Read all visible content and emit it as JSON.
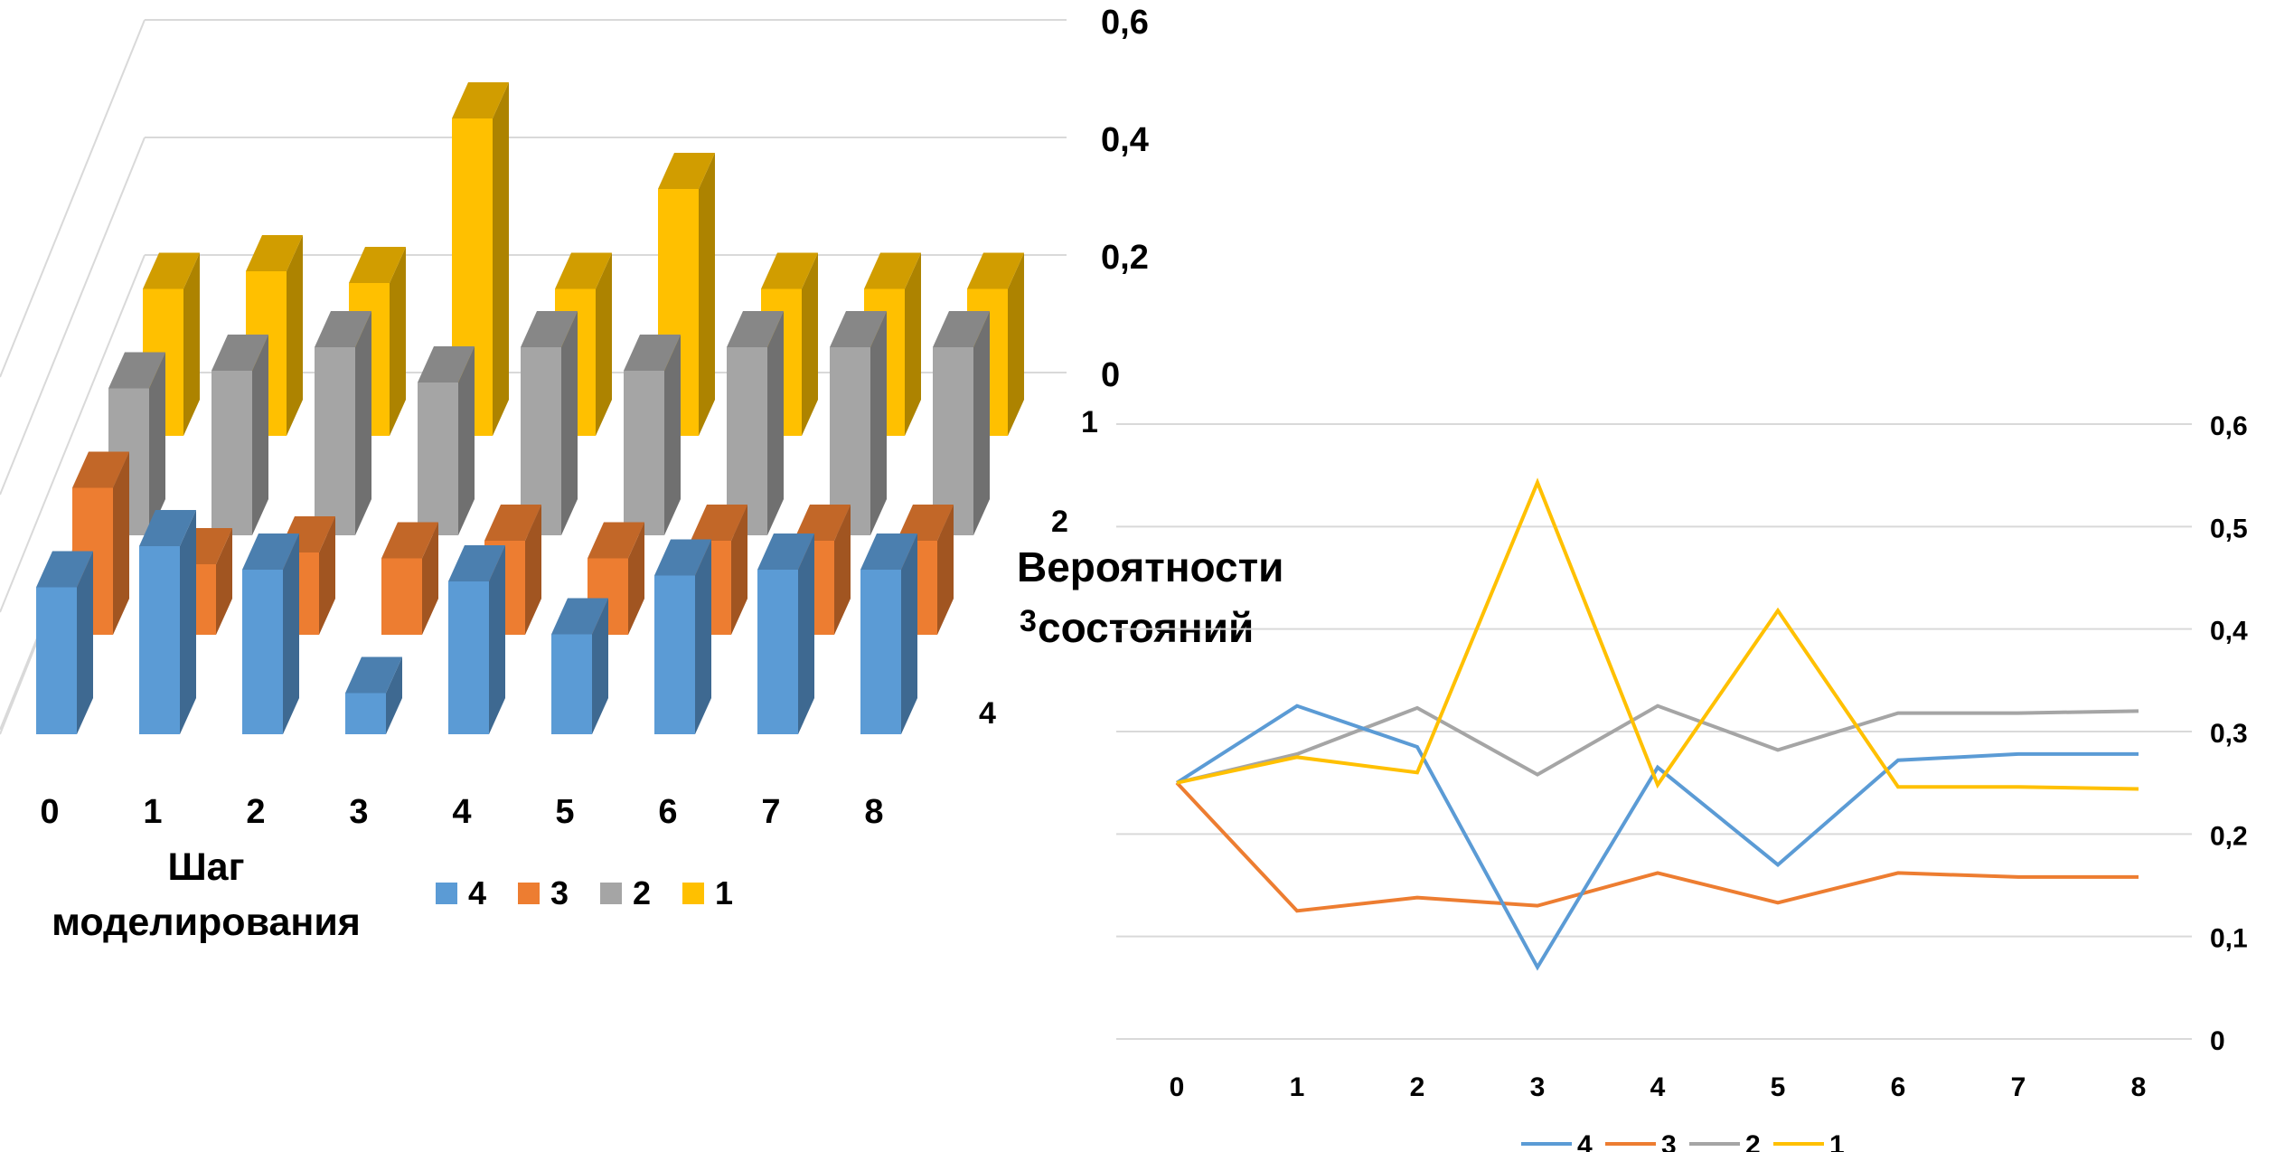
{
  "chart_data": [
    {
      "type": "bar",
      "subtype": "3d-column",
      "categories": [
        "0",
        "1",
        "2",
        "3",
        "4",
        "5",
        "6",
        "7",
        "8"
      ],
      "series": [
        {
          "name": "4",
          "color": "#5B9BD5",
          "values": [
            0.25,
            0.32,
            0.28,
            0.07,
            0.26,
            0.17,
            0.27,
            0.28,
            0.28
          ]
        },
        {
          "name": "3",
          "color": "#ED7D31",
          "values": [
            0.25,
            0.12,
            0.14,
            0.13,
            0.16,
            0.13,
            0.16,
            0.16,
            0.16
          ]
        },
        {
          "name": "2",
          "color": "#A5A5A5",
          "values": [
            0.25,
            0.28,
            0.32,
            0.26,
            0.32,
            0.28,
            0.32,
            0.32,
            0.32
          ]
        },
        {
          "name": "1",
          "color": "#FFC000",
          "values": [
            0.25,
            0.28,
            0.26,
            0.54,
            0.25,
            0.42,
            0.25,
            0.25,
            0.25
          ]
        }
      ],
      "depth_labels": [
        "1",
        "2",
        "3",
        "4"
      ],
      "xlabel": "Шаг моделирования",
      "zlabel": "Вероятности состояний",
      "zticks": [
        "0",
        "0,2",
        "0,4",
        "0,6"
      ],
      "zlim": [
        0,
        0.6
      ],
      "legend": {
        "position": "bottom",
        "entries": [
          "4",
          "3",
          "2",
          "1"
        ]
      }
    },
    {
      "type": "line",
      "x": [
        "0",
        "1",
        "2",
        "3",
        "4",
        "5",
        "6",
        "7",
        "8"
      ],
      "series": [
        {
          "name": "4",
          "color": "#5B9BD5",
          "values": [
            0.25,
            0.325,
            0.285,
            0.07,
            0.265,
            0.17,
            0.272,
            0.278,
            0.278
          ]
        },
        {
          "name": "3",
          "color": "#ED7D31",
          "values": [
            0.25,
            0.125,
            0.138,
            0.13,
            0.162,
            0.133,
            0.162,
            0.158,
            0.158
          ]
        },
        {
          "name": "2",
          "color": "#A5A5A5",
          "values": [
            0.25,
            0.278,
            0.323,
            0.258,
            0.325,
            0.282,
            0.318,
            0.318,
            0.32
          ]
        },
        {
          "name": "1",
          "color": "#FFC000",
          "values": [
            0.25,
            0.275,
            0.26,
            0.543,
            0.248,
            0.418,
            0.246,
            0.246,
            0.244
          ]
        }
      ],
      "yticks": [
        "0",
        "0,1",
        "0,2",
        "0,3",
        "0,4",
        "0,5",
        "0,6"
      ],
      "ylim": [
        0,
        0.6
      ],
      "grid": true,
      "legend": {
        "position": "bottom",
        "entries": [
          "4",
          "3",
          "2",
          "1"
        ]
      }
    }
  ]
}
